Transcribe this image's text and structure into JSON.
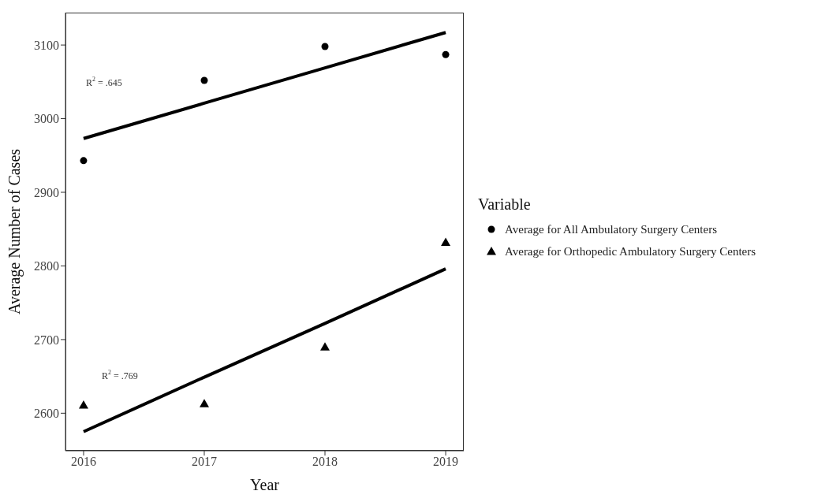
{
  "chart_data": {
    "type": "scatter",
    "xlabel": "Year",
    "ylabel": "Average Number of Cases",
    "legend_title": "Variable",
    "legend": "right",
    "x": [
      2016,
      2017,
      2018,
      2019
    ],
    "xlim": [
      2015.85,
      2019.15
    ],
    "xticks": [
      2016,
      2017,
      2018,
      2019
    ],
    "ylim": [
      2549,
      3144
    ],
    "yticks": [
      2600,
      2700,
      2800,
      2900,
      3000,
      3100
    ],
    "series": [
      {
        "name": "Average for All Ambulatory Surgery Centers",
        "color": "#000000",
        "marker": "circle",
        "values": [
          2943,
          3052,
          3098,
          3087
        ]
      },
      {
        "name": "Average for Orthopedic Ambulatory Surgery Centers",
        "color": "#000000",
        "marker": "triangle",
        "values": [
          2611,
          2613,
          2690,
          2832
        ]
      },
      {
        "type": "line",
        "color": "#000000",
        "values": [
          2973,
          3021,
          3069,
          3117
        ]
      },
      {
        "type": "line",
        "color": "#000000",
        "values": [
          2575,
          2649,
          2722,
          2796
        ]
      }
    ],
    "annotations": [
      "R$^{2}$ = .645",
      "R$^{2}$ = .769"
    ]
  }
}
